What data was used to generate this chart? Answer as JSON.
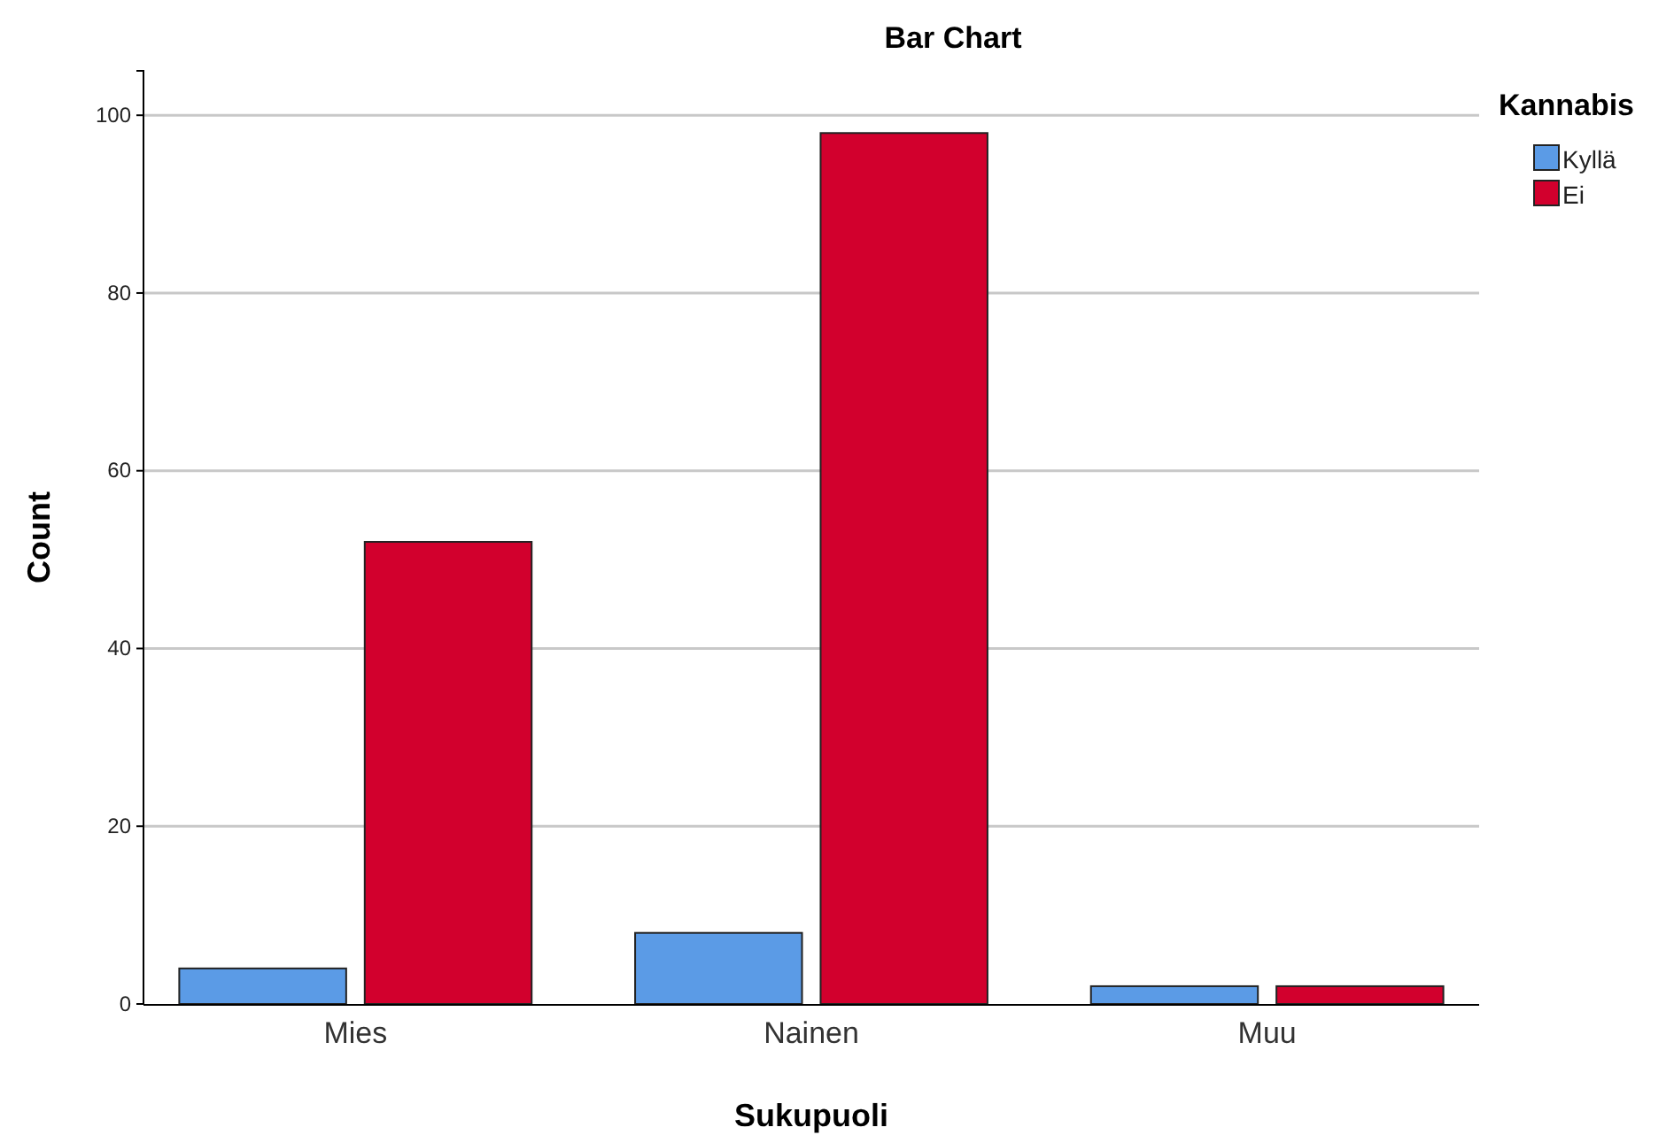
{
  "chart_data": {
    "type": "bar",
    "title": "Bar Chart",
    "xlabel": "Sukupuoli",
    "ylabel": "Count",
    "legend_title": "Kannabis",
    "categories": [
      "Mies",
      "Nainen",
      "Muu"
    ],
    "series": [
      {
        "name": "Kyllä",
        "color": "#5b9be6",
        "values": [
          4,
          8,
          2
        ]
      },
      {
        "name": "Ei",
        "color": "#d2002d",
        "values": [
          52,
          98,
          2
        ]
      }
    ],
    "ylim": [
      0,
      105
    ],
    "yticks": [
      0,
      20,
      40,
      60,
      80,
      100
    ],
    "grid": "y",
    "legend": "top right"
  }
}
